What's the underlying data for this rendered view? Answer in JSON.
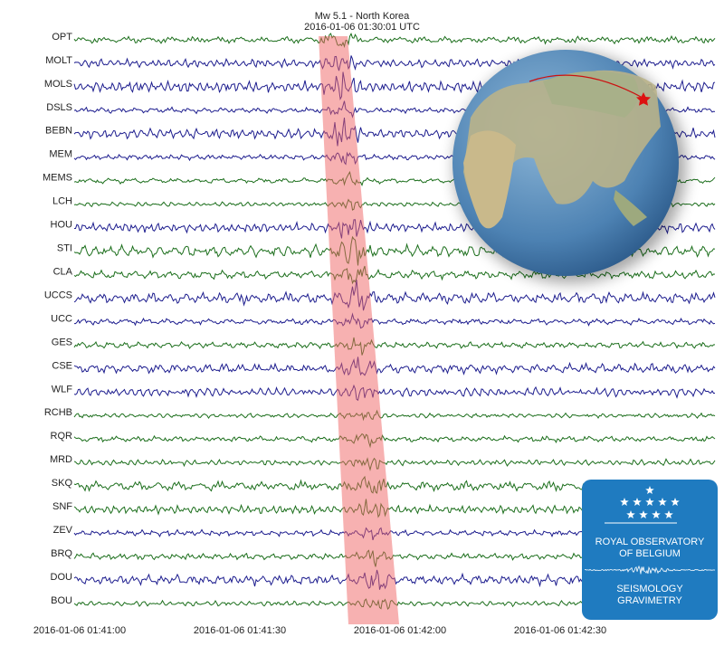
{
  "chart_data": {
    "type": "seismogram",
    "title": "Mw 5.1 - North Korea",
    "subtitle": "2016-01-06 01:30:01 UTC",
    "stations": [
      {
        "name": "OPT",
        "color": "#1b6e1b"
      },
      {
        "name": "MOLT",
        "color": "#1c1c8e"
      },
      {
        "name": "MOLS",
        "color": "#1c1c8e"
      },
      {
        "name": "DSLS",
        "color": "#1c1c8e"
      },
      {
        "name": "BEBN",
        "color": "#1c1c8e"
      },
      {
        "name": "MEM",
        "color": "#1c1c8e"
      },
      {
        "name": "MEMS",
        "color": "#1b6e1b"
      },
      {
        "name": "LCH",
        "color": "#1b6e1b"
      },
      {
        "name": "HOU",
        "color": "#1c1c8e"
      },
      {
        "name": "STI",
        "color": "#1b6e1b"
      },
      {
        "name": "CLA",
        "color": "#1b6e1b"
      },
      {
        "name": "UCCS",
        "color": "#1c1c8e"
      },
      {
        "name": "UCC",
        "color": "#1c1c8e"
      },
      {
        "name": "GES",
        "color": "#1b6e1b"
      },
      {
        "name": "CSE",
        "color": "#1c1c8e"
      },
      {
        "name": "WLF",
        "color": "#1c1c8e"
      },
      {
        "name": "RCHB",
        "color": "#1b6e1b"
      },
      {
        "name": "RQR",
        "color": "#1b6e1b"
      },
      {
        "name": "MRD",
        "color": "#1b6e1b"
      },
      {
        "name": "SKQ",
        "color": "#1b6e1b"
      },
      {
        "name": "SNF",
        "color": "#1b6e1b"
      },
      {
        "name": "ZEV",
        "color": "#1c1c8e"
      },
      {
        "name": "BRQ",
        "color": "#1b6e1b"
      },
      {
        "name": "DOU",
        "color": "#1c1c8e"
      },
      {
        "name": "BOU",
        "color": "#1b6e1b"
      }
    ],
    "time_labels": [
      "2016-01-06 01:41:00",
      "2016-01-06 01:41:30",
      "2016-01-06 01:42:00",
      "2016-01-06 01:42:30"
    ],
    "logo": [
      "ROYAL OBSERVATORY",
      "OF BELGIUM",
      "SEISMOLOGY",
      "GRAVIMETRY"
    ]
  }
}
